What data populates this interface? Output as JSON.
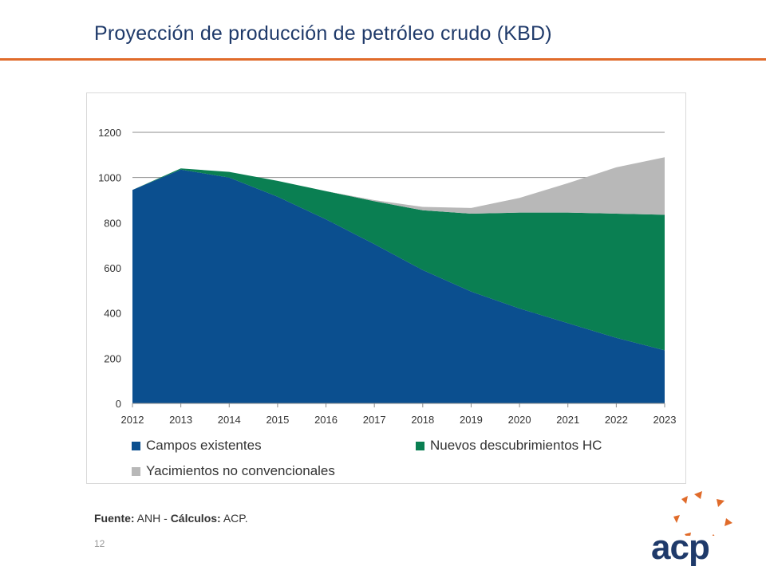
{
  "header": {
    "title": "Proyección de producción de petróleo crudo (KBD)"
  },
  "footer": {
    "source_label": "Fuente:",
    "source_value": " ANH - ",
    "calc_label": "Cálculos:",
    "calc_value": " ACP.",
    "page_number": "12"
  },
  "logo": {
    "text": "acp",
    "brand_color": "#1f3a6a",
    "accent_color": "#e06b2a"
  },
  "chart_data": {
    "type": "area",
    "stacked": true,
    "x": [
      "2012",
      "2013",
      "2014",
      "2015",
      "2016",
      "2017",
      "2018",
      "2019",
      "2020",
      "2021",
      "2022",
      "2023"
    ],
    "series": [
      {
        "name": "Campos existentes",
        "color": "#0b4f8f",
        "values": [
          945,
          1035,
          1000,
          915,
          815,
          705,
          590,
          495,
          420,
          355,
          290,
          235
        ]
      },
      {
        "name": "Nuevos descubrimientos HC",
        "color": "#0a7f52",
        "values": [
          0,
          5,
          25,
          70,
          125,
          190,
          265,
          345,
          425,
          490,
          550,
          600
        ]
      },
      {
        "name": "Yacimientos no convencionales",
        "color": "#b8b8b8",
        "values": [
          0,
          0,
          0,
          0,
          0,
          5,
          15,
          25,
          65,
          130,
          205,
          255
        ]
      }
    ],
    "ylim": [
      0,
      1200
    ],
    "yticks": [
      "0",
      "200",
      "400",
      "600",
      "800",
      "1000",
      "1200"
    ],
    "grid": true,
    "legend_position": "bottom"
  }
}
